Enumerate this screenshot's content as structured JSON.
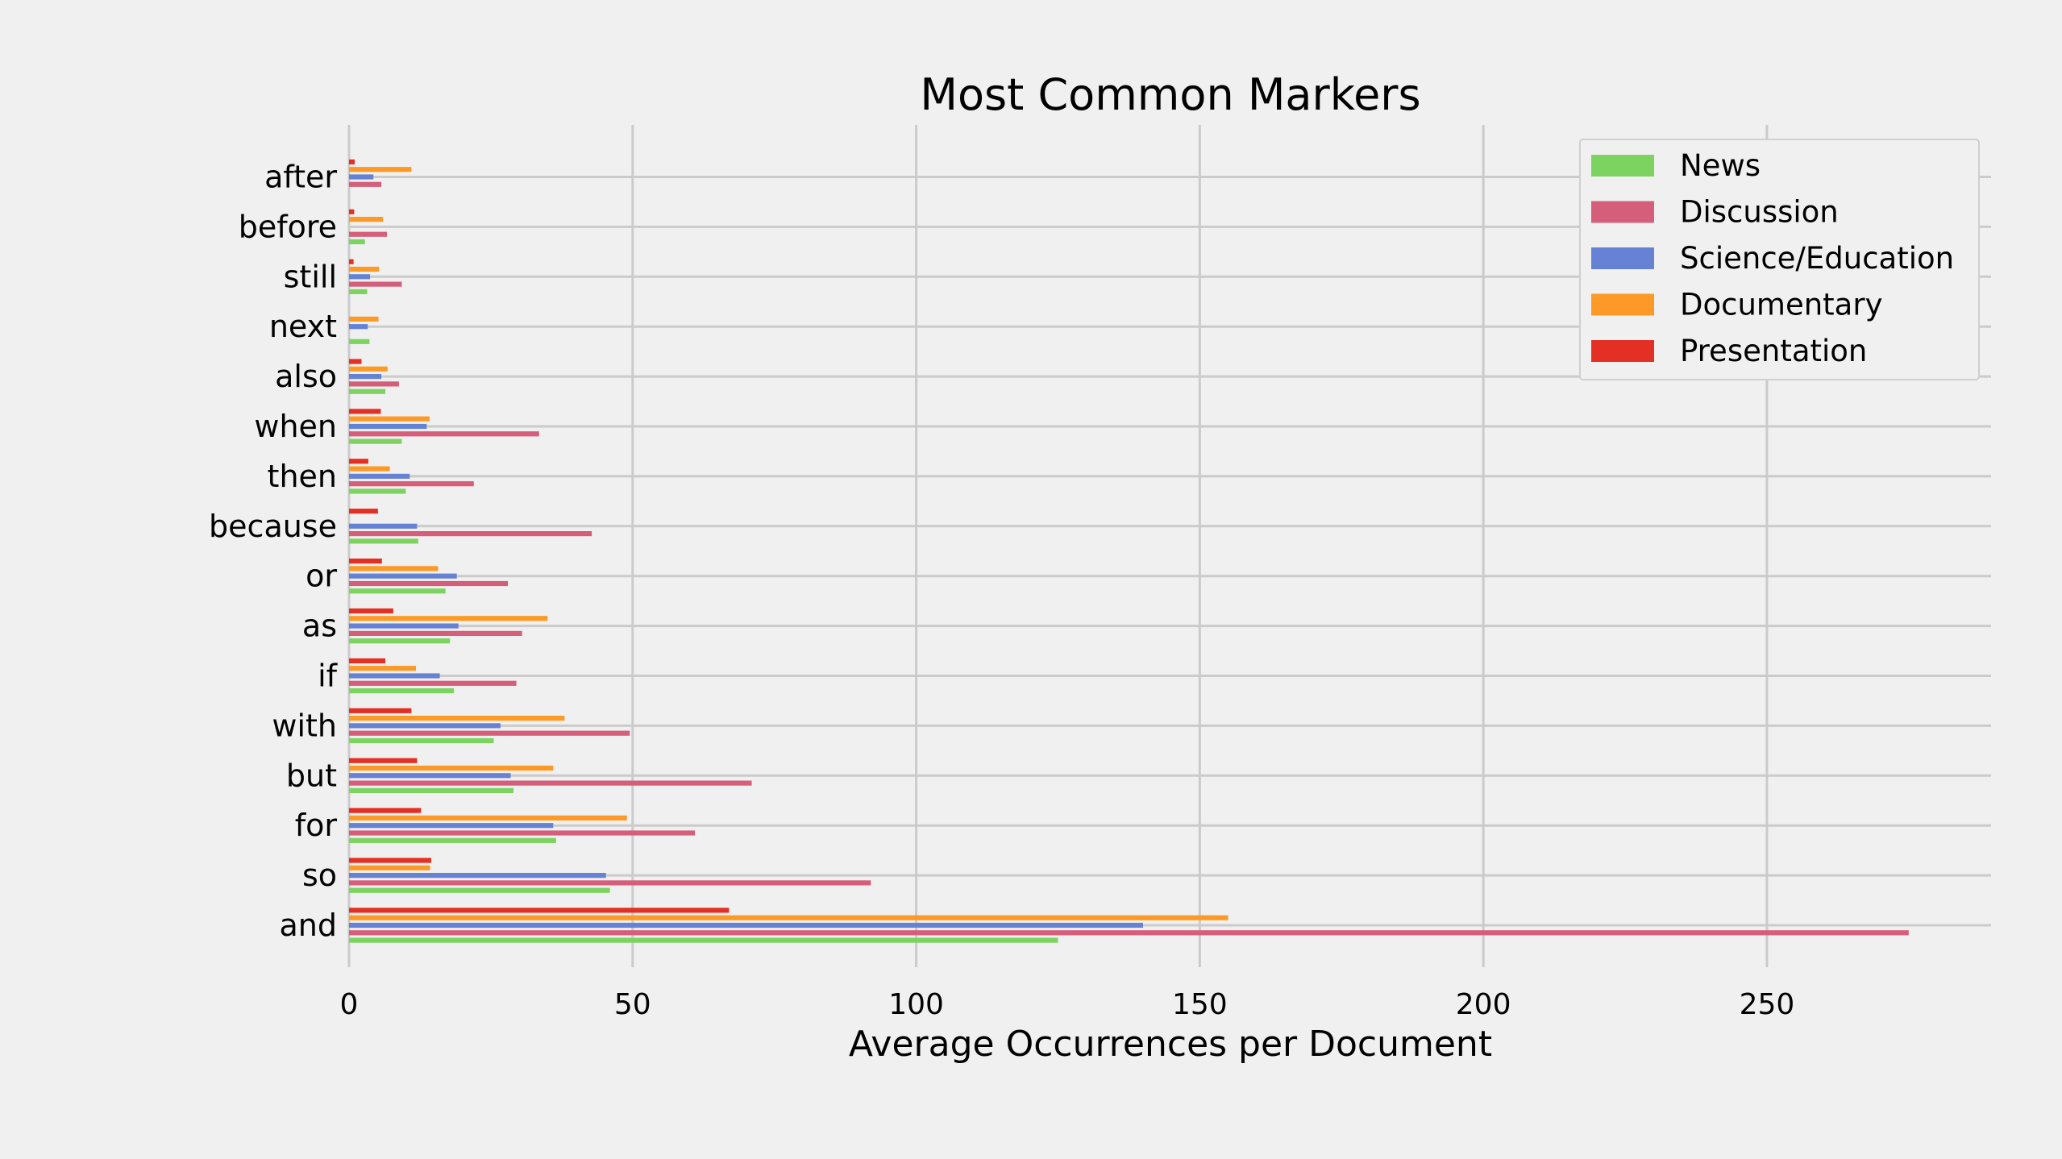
{
  "chart_data": {
    "type": "bar",
    "orientation": "horizontal",
    "title": "Most Common Markers",
    "xlabel": "Average Occurrences per Document",
    "ylabel": "",
    "xlim": [
      0,
      288
    ],
    "xticks": [
      0,
      50,
      100,
      150,
      200,
      250
    ],
    "grid": true,
    "legend_position": "top-right",
    "categories": [
      "and",
      "so",
      "for",
      "but",
      "with",
      "if",
      "as",
      "or",
      "because",
      "then",
      "when",
      "also",
      "next",
      "still",
      "before",
      "after"
    ],
    "series": [
      {
        "name": "News",
        "color": "#7dd35f",
        "values": [
          125,
          46,
          36.5,
          29,
          25.5,
          18.5,
          17.8,
          17,
          12.2,
          10,
          9.3,
          6.4,
          3.6,
          3.2,
          2.8,
          0
        ]
      },
      {
        "name": "Discussion",
        "color": "#d55e7a",
        "values": [
          275,
          92,
          61,
          71,
          49.5,
          29.5,
          30.5,
          28,
          42.8,
          22,
          33.5,
          8.8,
          0,
          9.3,
          6.7,
          5.7
        ]
      },
      {
        "name": "Science/Education",
        "color": "#6682d5",
        "values": [
          140,
          45.3,
          36,
          28.5,
          26.7,
          16,
          19.3,
          19,
          12,
          10.7,
          13.7,
          5.7,
          3.3,
          3.7,
          0,
          4.3
        ]
      },
      {
        "name": "Documentary",
        "color": "#fd9a27",
        "values": [
          155,
          14.3,
          49,
          36,
          38,
          11.8,
          35,
          15.7,
          0,
          7.2,
          14.2,
          6.8,
          5.2,
          5.3,
          6,
          11
        ]
      },
      {
        "name": "Presentation",
        "color": "#e42f25",
        "values": [
          67,
          14.5,
          12.7,
          12,
          11,
          6.4,
          7.8,
          5.8,
          5.1,
          3.4,
          5.6,
          2.2,
          0,
          0.8,
          0.9,
          1
        ]
      }
    ]
  }
}
